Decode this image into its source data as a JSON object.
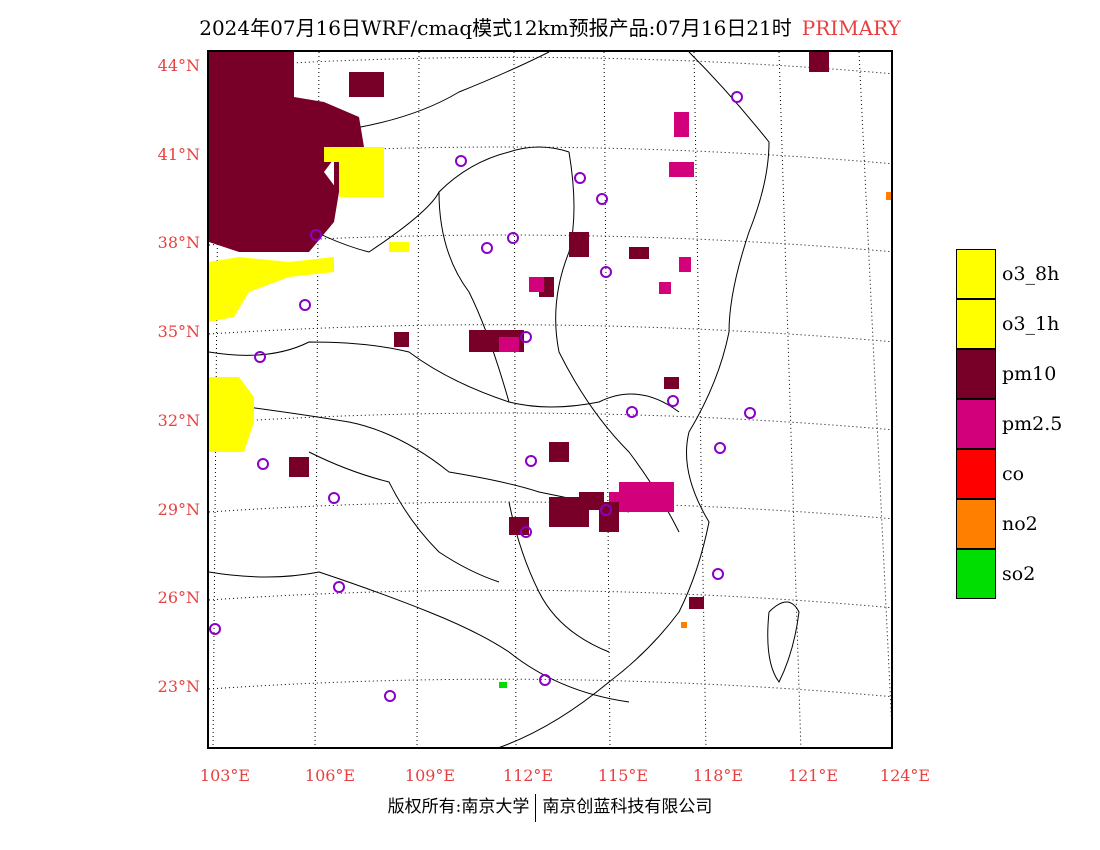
{
  "title": {
    "main": "2024年07月16日WRF/cmaq模式12km预报产品:07月16日21时",
    "tag": "PRIMARY"
  },
  "axes": {
    "lat_labels": [
      "44°N",
      "41°N",
      "38°N",
      "35°N",
      "32°N",
      "29°N",
      "26°N",
      "23°N"
    ],
    "lon_labels": [
      "103°E",
      "106°E",
      "109°E",
      "112°E",
      "115°E",
      "118°E",
      "121°E",
      "124°E"
    ]
  },
  "legend": [
    {
      "label": "o3_8h",
      "color": "#ffff00"
    },
    {
      "label": "o3_1h",
      "color": "#ffff00"
    },
    {
      "label": "pm10",
      "color": "#780028"
    },
    {
      "label": "pm2.5",
      "color": "#d2007a"
    },
    {
      "label": "co",
      "color": "#ff0000"
    },
    {
      "label": "no2",
      "color": "#ff7f00"
    },
    {
      "label": "so2",
      "color": "#00dd00"
    }
  ],
  "footer": {
    "left": "版权所有:南京大学",
    "right": "南京创蓝科技有限公司"
  }
}
